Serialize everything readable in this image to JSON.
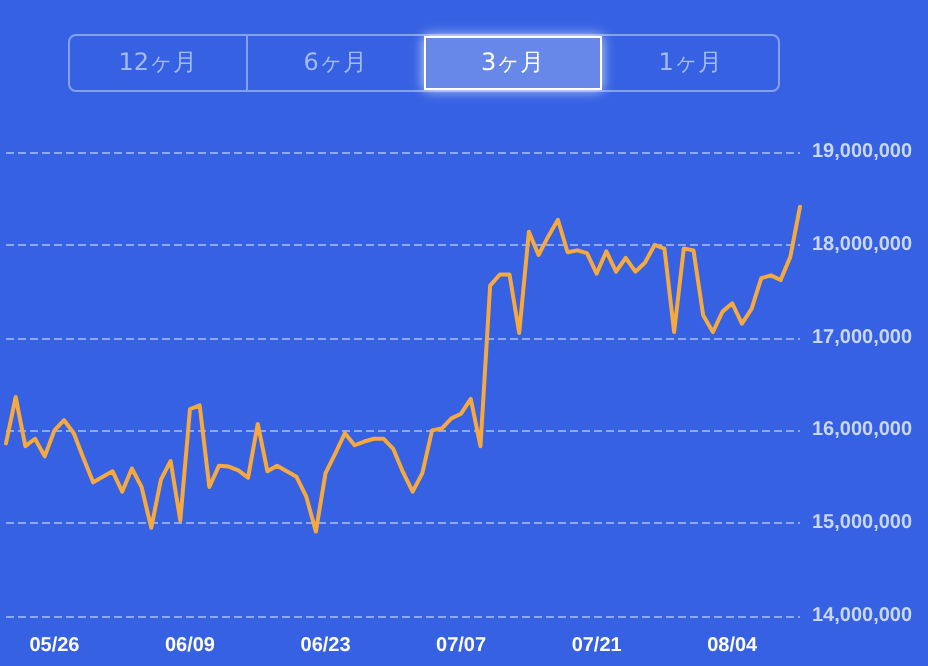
{
  "chart_data": {
    "type": "line",
    "annotations": [
      "12ヶ月",
      "6ヶ月",
      "3ヶ月",
      "1ヶ月"
    ],
    "categories": [
      null,
      null,
      null,
      null,
      null,
      "05/26",
      null,
      null,
      null,
      null,
      null,
      null,
      null,
      null,
      null,
      null,
      null,
      null,
      null,
      "06/09",
      null,
      null,
      null,
      null,
      null,
      null,
      null,
      null,
      null,
      null,
      null,
      null,
      null,
      "06/23",
      null,
      null,
      null,
      null,
      null,
      null,
      null,
      null,
      null,
      null,
      null,
      null,
      null,
      "07/07",
      null,
      null,
      null,
      null,
      null,
      null,
      null,
      null,
      null,
      null,
      null,
      null,
      null,
      "07/21",
      null,
      null,
      null,
      null,
      null,
      null,
      null,
      null,
      null,
      null,
      null,
      null,
      null,
      "08/04",
      null,
      null,
      null,
      null,
      null,
      null,
      null
    ],
    "series": [
      {
        "color": "#f6a93e",
        "values": [
          15860000,
          16360000,
          15830000,
          15910000,
          15720000,
          16000000,
          16110000,
          15970000,
          15700000,
          15440000,
          15500000,
          15560000,
          15340000,
          15590000,
          15390000,
          14950000,
          15470000,
          15670000,
          15030000,
          16230000,
          16270000,
          15390000,
          15620000,
          15610000,
          15570000,
          15490000,
          16070000,
          15560000,
          15620000,
          15560000,
          15500000,
          15290000,
          14910000,
          15540000,
          15750000,
          15970000,
          15840000,
          15880000,
          15910000,
          15910000,
          15800000,
          15550000,
          15340000,
          15540000,
          16000000,
          16020000,
          16130000,
          16180000,
          16340000,
          15830000,
          17560000,
          17680000,
          17680000,
          17050000,
          18140000,
          17890000,
          18090000,
          18270000,
          17920000,
          17940000,
          17910000,
          17690000,
          17930000,
          17710000,
          17860000,
          17710000,
          17810000,
          18000000,
          17960000,
          17060000,
          17960000,
          17940000,
          17240000,
          17060000,
          17280000,
          17370000,
          17150000,
          17310000,
          17640000,
          17670000,
          17620000,
          17870000,
          18410000
        ]
      }
    ],
    "ylim": [
      14000000,
      19000000
    ],
    "yticks": [
      {
        "value": 14000000,
        "label": "14,000,000"
      },
      {
        "value": 15000000,
        "label": "15,000,000"
      },
      {
        "value": 16000000,
        "label": "16,000,000"
      },
      {
        "value": 17000000,
        "label": "17,000,000"
      },
      {
        "value": 18000000,
        "label": "18,000,000"
      },
      {
        "value": 19000000,
        "label": "19,000,000"
      }
    ],
    "grid": "y",
    "marker": "none",
    "line_style": "solid"
  }
}
